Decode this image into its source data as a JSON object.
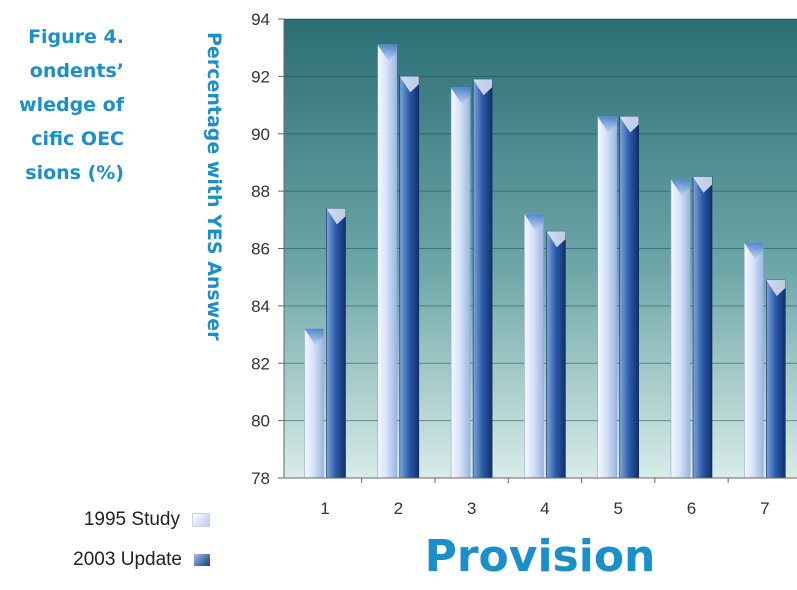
{
  "title_lines": [
    "Figure 4.",
    "ondents’",
    "wledge of",
    "cific OEC",
    "sions (%)"
  ],
  "chart_data": {
    "type": "bar",
    "categories": [
      "1",
      "2",
      "3",
      "4",
      "5",
      "6",
      "7"
    ],
    "series": [
      {
        "name": "1995 Study",
        "values": [
          83.2,
          93.1,
          91.6,
          87.2,
          90.6,
          88.4,
          86.2
        ]
      },
      {
        "name": "2003 Update",
        "values": [
          87.4,
          92.0,
          91.9,
          86.6,
          90.6,
          88.5,
          84.9
        ]
      }
    ],
    "xlabel": "Provision",
    "ylabel": "Percentage with YES Answer",
    "ylim": [
      78,
      94
    ],
    "yticks": [
      "78",
      "80",
      "82",
      "84",
      "86",
      "88",
      "90",
      "92",
      "94"
    ],
    "grid": true,
    "legend_position": "bottom-left",
    "colors": {
      "background_top": "#2a6e74",
      "background_bottom": "#d8ece8",
      "series_1995": "#c9d8f4",
      "series_2003": "#1c3f86",
      "text_accent": "#1a8fc9"
    }
  }
}
